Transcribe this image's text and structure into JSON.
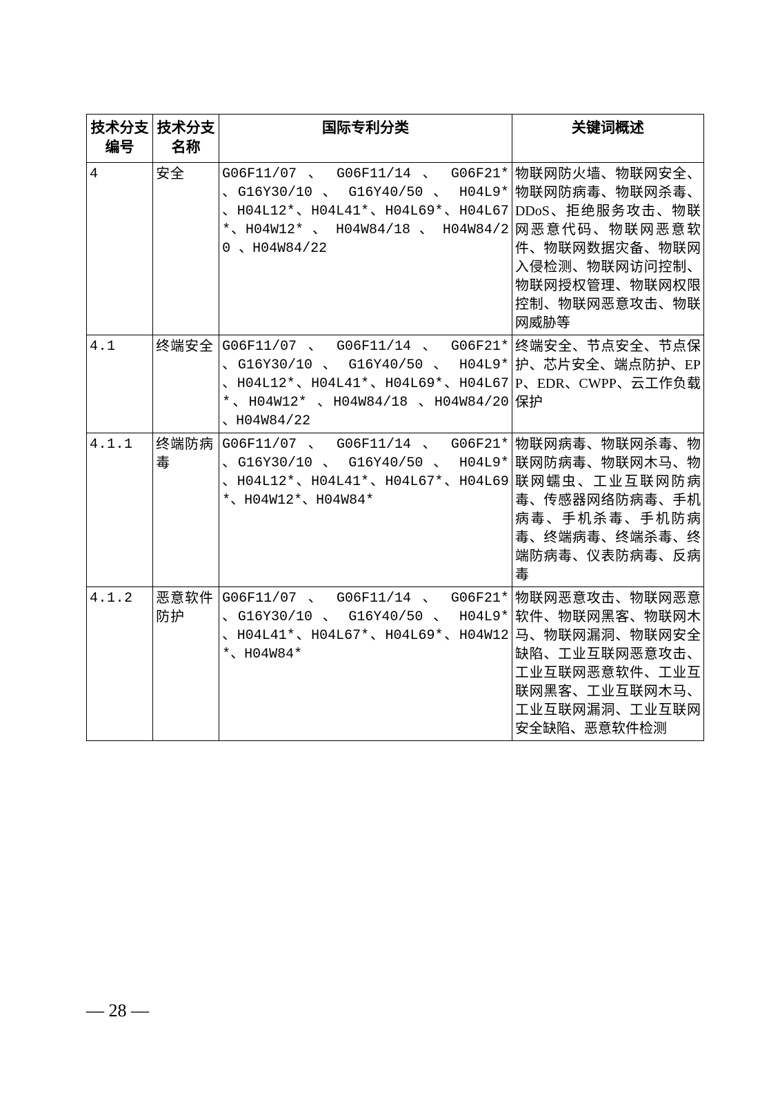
{
  "table": {
    "headers": {
      "col1": "技术分支编号",
      "col2": "技术分支名称",
      "col3": "国际专利分类",
      "col4": "关键词概述"
    },
    "rows": [
      {
        "code": "4",
        "name": "安全",
        "ipc": "G06F11/07 、 G06F11/14 、 G06F21* 、G16Y30/10 、 G16Y40/50 、 H04L9* 、H04L12*、H04L41*、H04L69*、H04L67*、H04W12* 、 H04W84/18 、 H04W84/20 、H04W84/22",
        "keywords": "物联网防火墙、物联网安全、物联网防病毒、物联网杀毒、DDoS、拒绝服务攻击、物联网恶意代码、物联网恶意软件、物联网数据灾备、物联网入侵检测、物联网访问控制、物联网授权管理、物联网权限控制、物联网恶意攻击、物联网威胁等"
      },
      {
        "code": "4.1",
        "name": "终端安全",
        "ipc": "G06F11/07 、 G06F11/14 、 G06F21* 、G16Y30/10 、 G16Y40/50 、 H04L9* 、H04L12*、H04L41*、H04L69*、H04L67*、H04W12* 、H04W84/18 、H04W84/20 、H04W84/22",
        "keywords": "终端安全、节点安全、节点保护、芯片安全、端点防护、EPP、EDR、CWPP、云工作负载保护"
      },
      {
        "code": "4.1.1",
        "name": "终端防病毒",
        "ipc": "G06F11/07 、 G06F11/14 、 G06F21* 、G16Y30/10 、 G16Y40/50 、 H04L9* 、H04L12*、H04L41*、H04L67*、H04L69*、H04W12*、H04W84*",
        "keywords": "物联网病毒、物联网杀毒、物联网防病毒、物联网木马、物联网蠕虫、工业互联网防病毒、传感器网络防病毒、手机病毒、手机杀毒、手机防病毒、终端病毒、终端杀毒、终端防病毒、仪表防病毒、反病毒"
      },
      {
        "code": "4.1.2",
        "name": "恶意软件防护",
        "ipc": "G06F11/07 、 G06F11/14 、 G06F21* 、G16Y30/10 、 G16Y40/50 、 H04L9* 、H04L41*、H04L67*、H04L69*、H04W12*、H04W84*",
        "keywords": "物联网恶意攻击、物联网恶意软件、物联网黑客、物联网木马、物联网漏洞、物联网安全缺陷、工业互联网恶意攻击、工业互联网恶意软件、工业互联网黑客、工业互联网木马、工业互联网漏洞、工业互联网安全缺陷、恶意软件检测"
      }
    ]
  },
  "page_number": "— 28 —"
}
